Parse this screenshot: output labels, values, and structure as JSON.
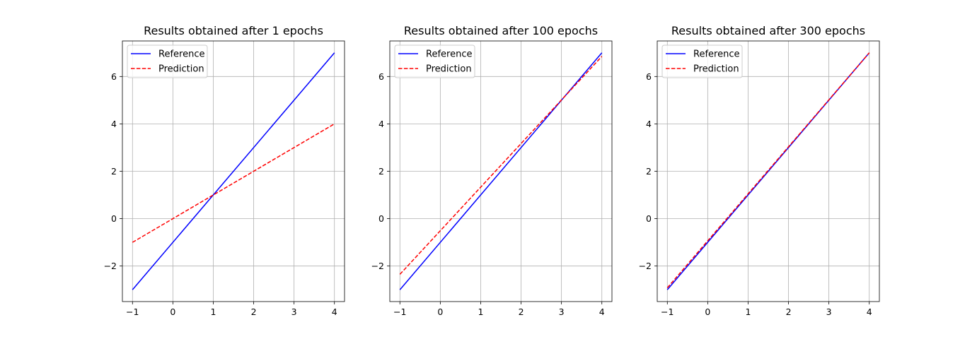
{
  "chart_data": [
    {
      "type": "line",
      "title": "Results obtained after 1 epochs",
      "xlim": [
        -1.25,
        4.25
      ],
      "ylim": [
        -3.5,
        7.5
      ],
      "xticks": [
        -1,
        0,
        1,
        2,
        3,
        4
      ],
      "xtick_labels": [
        "−1",
        "0",
        "1",
        "2",
        "3",
        "4"
      ],
      "yticks": [
        -2,
        0,
        2,
        4,
        6
      ],
      "ytick_labels": [
        "−2",
        "0",
        "2",
        "4",
        "6"
      ],
      "grid": true,
      "legend": "upper-left",
      "series": [
        {
          "name": "Reference",
          "color": "#0000ff",
          "style": "solid",
          "x": [
            -1,
            4
          ],
          "y": [
            -3,
            7
          ]
        },
        {
          "name": "Prediction",
          "color": "#ff0000",
          "style": "dashed",
          "x": [
            -1,
            4
          ],
          "y": [
            -1,
            4
          ]
        }
      ]
    },
    {
      "type": "line",
      "title": "Results obtained after 100 epochs",
      "xlim": [
        -1.25,
        4.25
      ],
      "ylim": [
        -3.5,
        7.5
      ],
      "xticks": [
        -1,
        0,
        1,
        2,
        3,
        4
      ],
      "xtick_labels": [
        "−1",
        "0",
        "1",
        "2",
        "3",
        "4"
      ],
      "yticks": [
        -2,
        0,
        2,
        4,
        6
      ],
      "ytick_labels": [
        "−2",
        "0",
        "2",
        "4",
        "6"
      ],
      "grid": true,
      "legend": "upper-left",
      "series": [
        {
          "name": "Reference",
          "color": "#0000ff",
          "style": "solid",
          "x": [
            -1,
            4
          ],
          "y": [
            -3,
            7
          ]
        },
        {
          "name": "Prediction",
          "color": "#ff0000",
          "style": "dashed",
          "x": [
            -1,
            4
          ],
          "y": [
            -2.35,
            6.85
          ]
        }
      ]
    },
    {
      "type": "line",
      "title": "Results obtained after 300 epochs",
      "xlim": [
        -1.25,
        4.25
      ],
      "ylim": [
        -3.5,
        7.5
      ],
      "xticks": [
        -1,
        0,
        1,
        2,
        3,
        4
      ],
      "xtick_labels": [
        "−1",
        "0",
        "1",
        "2",
        "3",
        "4"
      ],
      "yticks": [
        -2,
        0,
        2,
        4,
        6
      ],
      "ytick_labels": [
        "−2",
        "0",
        "2",
        "4",
        "6"
      ],
      "grid": true,
      "legend": "upper-left",
      "series": [
        {
          "name": "Reference",
          "color": "#0000ff",
          "style": "solid",
          "x": [
            -1,
            4
          ],
          "y": [
            -3,
            7
          ]
        },
        {
          "name": "Prediction",
          "color": "#ff0000",
          "style": "dashed",
          "x": [
            -1,
            4
          ],
          "y": [
            -2.92,
            7.0
          ]
        }
      ]
    }
  ]
}
